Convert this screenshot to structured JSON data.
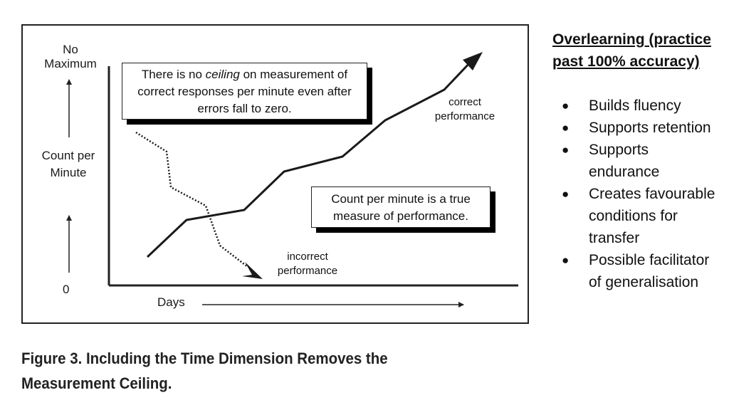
{
  "figure": {
    "y_axis": {
      "top_label": "No Maximum",
      "label": "Count per Minute",
      "zero_label": "0"
    },
    "x_axis": {
      "label": "Days"
    },
    "callouts": {
      "ceiling_note": "There is no ceiling on measurement of correct responses per minute even after errors fall to zero.",
      "ceiling_note_italic_word": "ceiling",
      "true_measure_note": "Count per minute is a true measure of performance."
    },
    "series": {
      "correct_label": "correct performance",
      "incorrect_label": "incorrect performance"
    },
    "caption": "Figure 3. Including the Time Dimension Removes the Measurement Ceiling."
  },
  "sidebar": {
    "title": "Overlearning (practice past 100% accuracy)",
    "bullets": [
      "Builds fluency",
      "Supports retention",
      "Supports endurance",
      "Creates favourable conditions for transfer",
      "Possible facilitator of generalisation"
    ]
  }
}
